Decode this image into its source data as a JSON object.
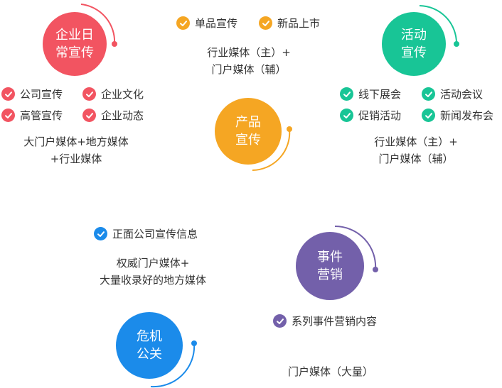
{
  "colors": {
    "red": "#f25461",
    "orange": "#f5a623",
    "green": "#18c596",
    "purple": "#7360aa",
    "blue": "#1b8bea"
  },
  "sections": {
    "daily": {
      "title": [
        "企业日",
        "常宣传"
      ],
      "items": [
        "公司宣传",
        "企业文化",
        "高管宣传",
        "企业动态"
      ],
      "desc": [
        "大门户媒体+地方媒体",
        "+行业媒体"
      ]
    },
    "product": {
      "title": [
        "产品",
        "宣传"
      ],
      "items": [
        "单品宣传",
        "新品上市"
      ],
      "desc": [
        "行业媒体（主）+",
        "门户媒体（辅）"
      ]
    },
    "activity": {
      "title": [
        "活动",
        "宣传"
      ],
      "items": [
        "线下展会",
        "活动会议",
        "促销活动",
        "新闻发布会"
      ],
      "desc": [
        "行业媒体（主）+",
        "门户媒体（辅）"
      ]
    },
    "crisis": {
      "title": [
        "危机",
        "公关"
      ],
      "items": [
        "正面公司宣传信息"
      ],
      "desc": [
        "权威门户媒体+",
        "大量收录好的地方媒体"
      ]
    },
    "event": {
      "title": [
        "事件",
        "营销"
      ],
      "items": [
        "系列事件营销内容"
      ],
      "desc": [
        "门户媒体（大量）"
      ]
    }
  }
}
